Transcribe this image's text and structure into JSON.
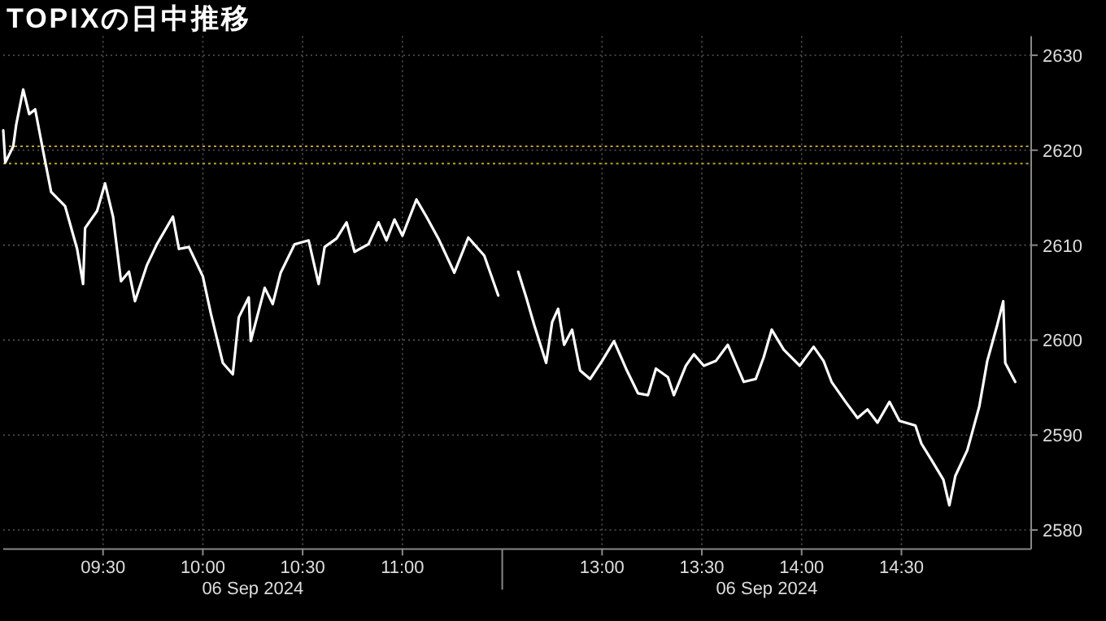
{
  "chart_data": [
    {
      "type": "line",
      "title": "TOPIXの日中推移",
      "xlabel": "06 Sep 2024",
      "tick_labels": "x",
      "grid": true,
      "xlim": [
        9,
        11.5
      ],
      "xticks": [
        {
          "value": 9.5,
          "label": "09:30"
        },
        {
          "value": 10,
          "label": "10:00"
        },
        {
          "value": 10.5,
          "label": "10:30"
        },
        {
          "value": 11,
          "label": "11:00"
        }
      ],
      "ylim": [
        2578,
        2632
      ],
      "yticks": [
        2580,
        2590,
        2600,
        2610,
        2620,
        2630
      ],
      "ref_lines": [
        {
          "axis": "y",
          "value": 2620.4,
          "color": "#b8a030",
          "line_style": "dotted"
        },
        {
          "axis": "y",
          "value": 2618.6,
          "color": "#b8a030",
          "line_style": "dotted"
        }
      ],
      "series": [
        {
          "color": "#ffffff",
          "x": [
            9.0,
            9.01,
            9.05,
            9.065,
            9.1,
            9.13,
            9.16,
            9.2,
            9.24,
            9.31,
            9.37,
            9.4,
            9.41,
            9.47,
            9.51,
            9.55,
            9.59,
            9.63,
            9.66,
            9.72,
            9.77,
            9.85,
            9.88,
            9.93,
            10.0,
            10.04,
            10.1,
            10.15,
            10.18,
            10.23,
            10.24,
            10.31,
            10.35,
            10.39,
            10.46,
            10.53,
            10.58,
            10.61,
            10.67,
            10.72,
            10.76,
            10.83,
            10.88,
            10.92,
            10.96,
            11.0,
            11.07,
            11.12,
            11.18,
            11.26,
            11.33,
            11.41,
            11.48
          ],
          "values": [
            2622.1,
            2618.7,
            2620.4,
            2622.7,
            2626.4,
            2623.8,
            2624.3,
            2619.9,
            2615.6,
            2614.1,
            2609.6,
            2605.9,
            2611.8,
            2613.6,
            2616.5,
            2613.0,
            2606.2,
            2607.2,
            2604.1,
            2607.9,
            2610.1,
            2613.0,
            2609.6,
            2609.8,
            2606.7,
            2602.8,
            2597.6,
            2596.4,
            2602.4,
            2604.5,
            2599.9,
            2605.5,
            2603.8,
            2607.1,
            2610.1,
            2610.5,
            2605.9,
            2609.8,
            2610.7,
            2612.4,
            2609.3,
            2610.1,
            2612.4,
            2610.5,
            2612.7,
            2611.0,
            2614.8,
            2613.0,
            2610.7,
            2607.1,
            2610.8,
            2608.9,
            2604.7
          ]
        }
      ]
    },
    {
      "type": "line",
      "xlabel": "06 Sep 2024",
      "grid": true,
      "xlim": [
        12.5,
        15.15
      ],
      "xticks": [
        {
          "value": 13,
          "label": "13:00"
        },
        {
          "value": 13.5,
          "label": "13:30"
        },
        {
          "value": 14,
          "label": "14:00"
        },
        {
          "value": 14.5,
          "label": "14:30"
        }
      ],
      "ylim": [
        2578,
        2632
      ],
      "yticks": [
        2580,
        2590,
        2600,
        2610,
        2620,
        2630
      ],
      "ref_lines": [
        {
          "axis": "y",
          "value": 2620.4,
          "color": "#b8a030",
          "line_style": "dotted"
        },
        {
          "axis": "y",
          "value": 2618.6,
          "color": "#b8a030",
          "line_style": "dotted"
        }
      ],
      "series": [
        {
          "color": "#ffffff",
          "x": [
            12.58,
            12.62,
            12.66,
            12.72,
            12.75,
            12.78,
            12.81,
            12.85,
            12.89,
            12.94,
            13.0,
            13.06,
            13.12,
            13.18,
            13.23,
            13.27,
            13.33,
            13.36,
            13.42,
            13.46,
            13.51,
            13.57,
            13.63,
            13.71,
            13.77,
            13.81,
            13.85,
            13.91,
            13.99,
            14.06,
            14.11,
            14.15,
            14.22,
            14.28,
            14.33,
            14.38,
            14.44,
            14.49,
            14.57,
            14.6,
            14.65,
            14.71,
            14.74,
            14.77,
            14.83,
            14.89,
            14.93,
            14.98,
            15.01,
            15.02,
            15.07
          ],
          "values": [
            2607.2,
            2604.5,
            2601.6,
            2597.6,
            2601.9,
            2603.3,
            2599.5,
            2601.1,
            2596.8,
            2595.9,
            2597.8,
            2599.9,
            2597.0,
            2594.4,
            2594.2,
            2597.0,
            2596.1,
            2594.2,
            2597.3,
            2598.5,
            2597.3,
            2597.8,
            2599.5,
            2595.6,
            2595.9,
            2598.2,
            2601.1,
            2599.0,
            2597.3,
            2599.3,
            2597.8,
            2595.6,
            2593.5,
            2591.8,
            2592.7,
            2591.3,
            2593.5,
            2591.5,
            2591.0,
            2589.1,
            2587.4,
            2585.3,
            2582.6,
            2585.7,
            2588.4,
            2593.0,
            2597.8,
            2601.6,
            2604.1,
            2597.6,
            2595.6
          ]
        }
      ]
    }
  ]
}
